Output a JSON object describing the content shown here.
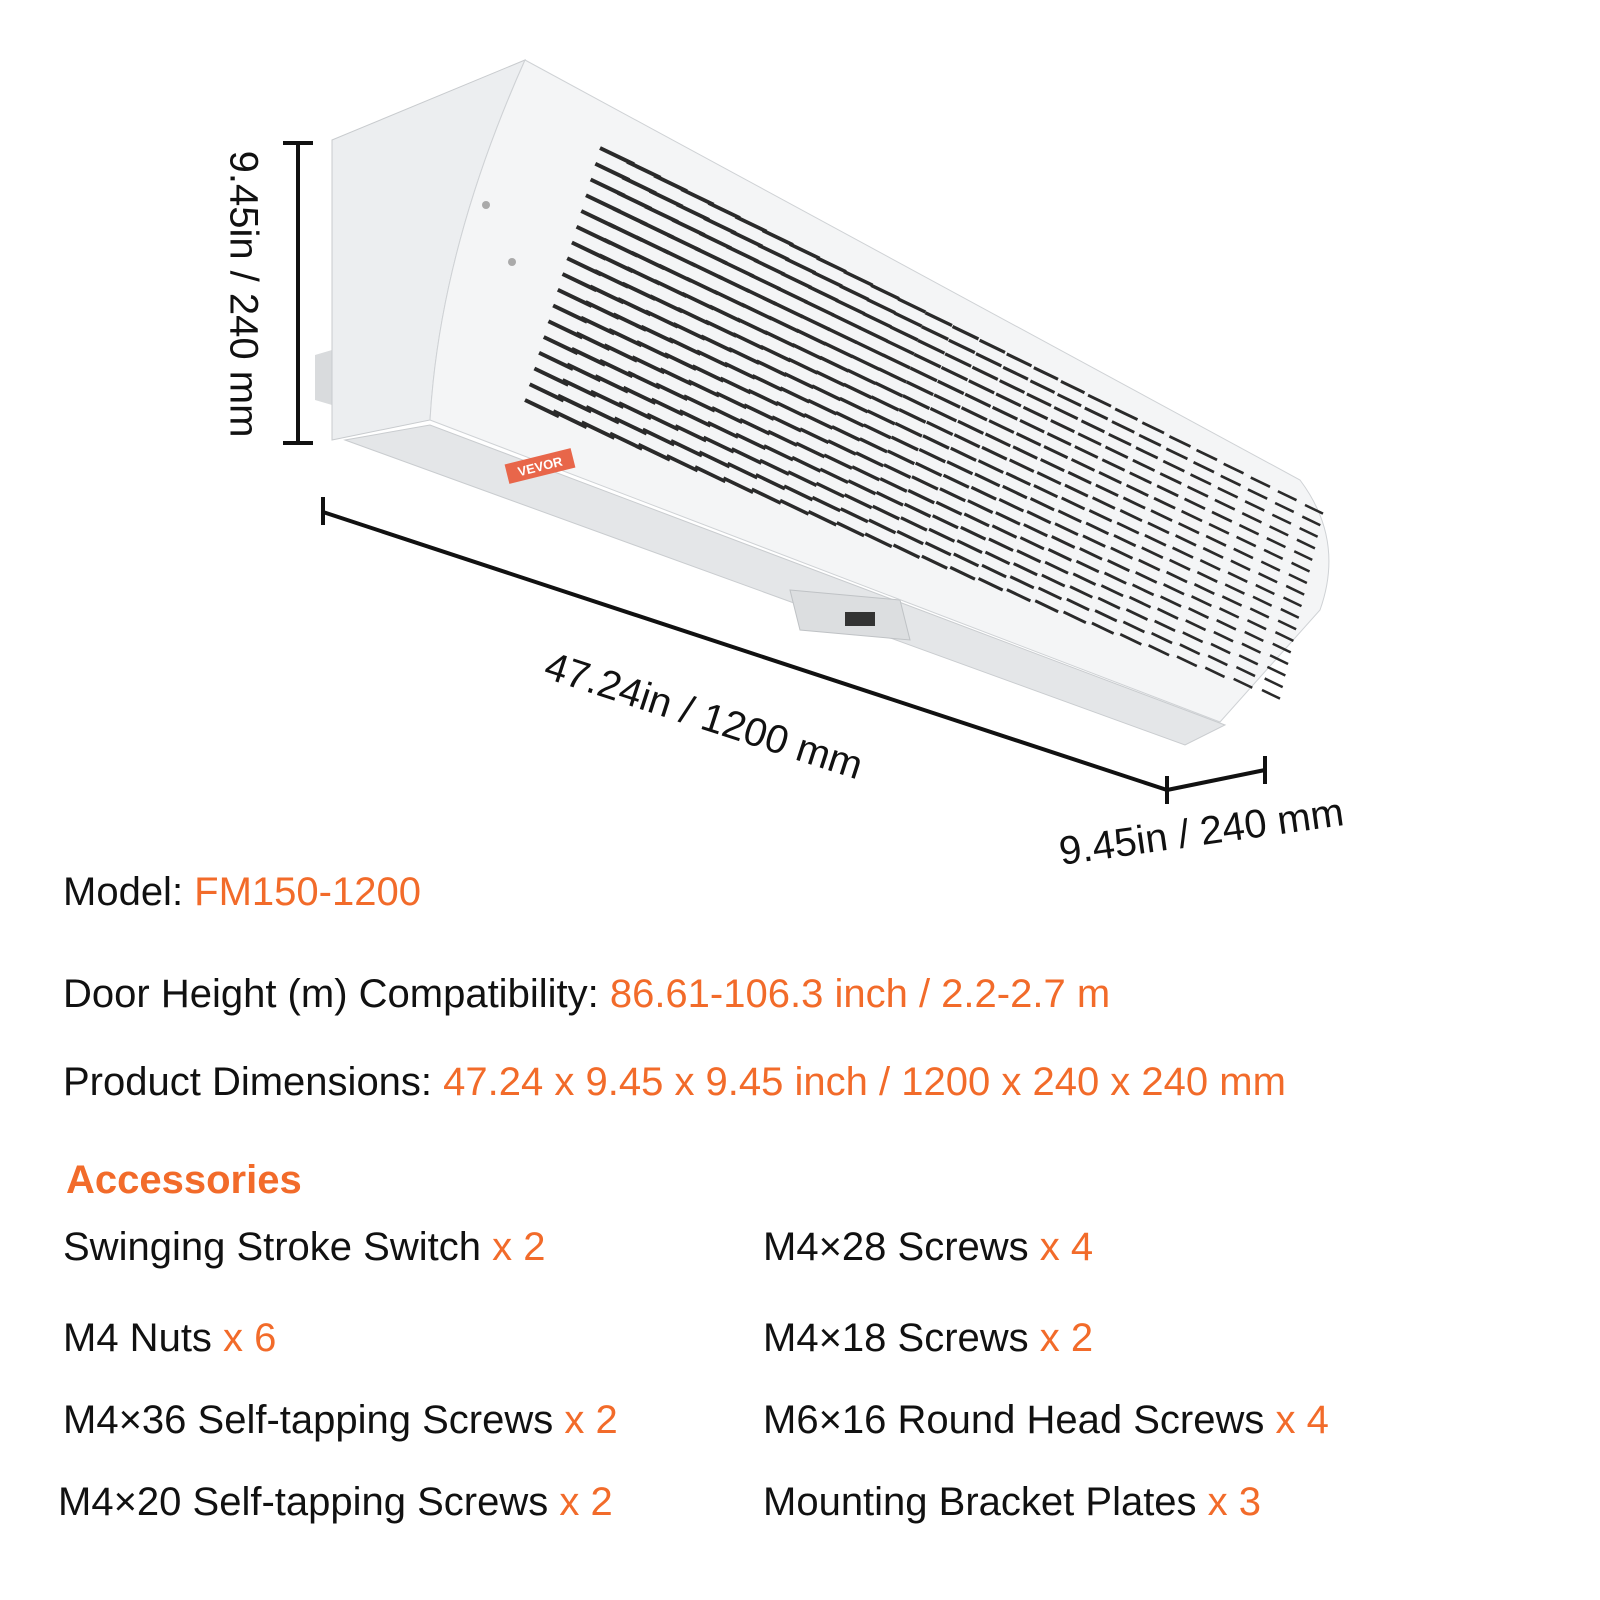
{
  "brand_logo": "VEVOR",
  "dimensions": {
    "height_label": "9.45in / 240 mm",
    "length_label": "47.24in / 1200 mm",
    "depth_label": "9.45in / 240 mm"
  },
  "specs": {
    "model_label": "Model: ",
    "model_value": "FM150-1200",
    "door_label": "Door Height (m) Compatibility: ",
    "door_value": "86.61-106.3 inch / 2.2-2.7 m",
    "dims_label": "Product Dimensions: ",
    "dims_value": "47.24 x 9.45 x 9.45 inch / 1200 x 240 x 240 mm"
  },
  "accessories": {
    "title": "Accessories",
    "items": [
      {
        "name": "Swinging Stroke Switch ",
        "qty": "x 2"
      },
      {
        "name": "M4×28 Screws ",
        "qty": "x 4"
      },
      {
        "name": "M4 Nuts ",
        "qty": "x 6"
      },
      {
        "name": "M4×18 Screws ",
        "qty": "x 2"
      },
      {
        "name": "M4×36 Self-tapping Screws ",
        "qty": "x 2"
      },
      {
        "name": "M6×16 Round Head Screws ",
        "qty": "x 4"
      },
      {
        "name": "M4×20 Self-tapping Screws ",
        "qty": "x 2"
      },
      {
        "name": "Mounting Bracket Plates ",
        "qty": "x 3"
      }
    ]
  },
  "colors": {
    "accent": "#f26b2a",
    "text": "#111111",
    "body": "#f2f3f4"
  }
}
